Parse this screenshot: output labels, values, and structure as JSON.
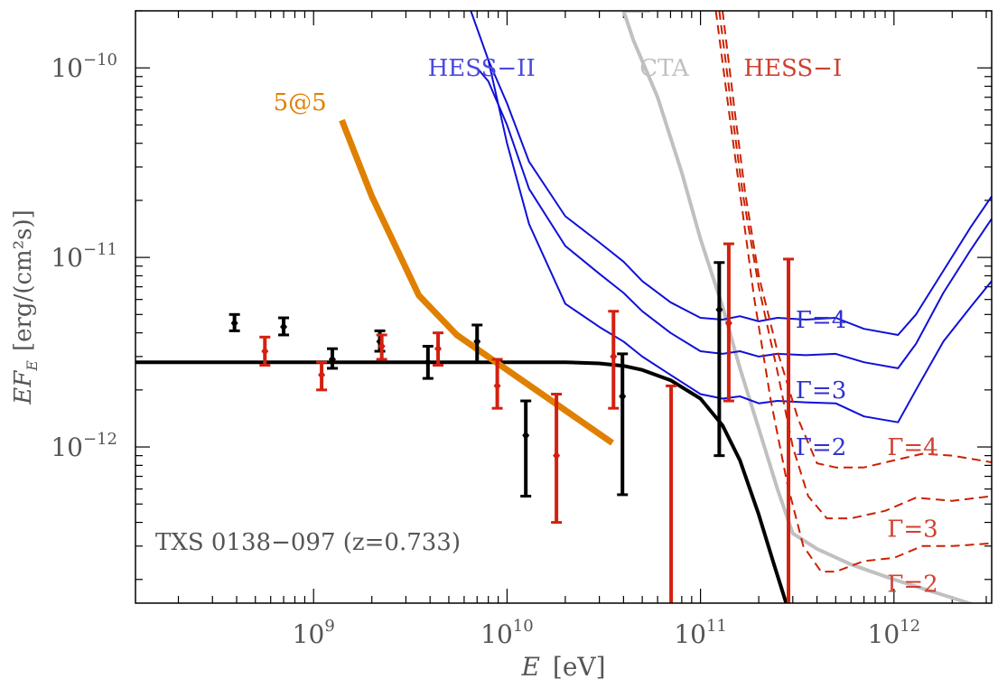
{
  "chart_data": {
    "type": "scatter",
    "title": "",
    "xlabel_var": "E",
    "xlabel_unit": "[eV]",
    "ylabel_var": "EF",
    "ylabel_sub": "E",
    "ylabel_unit": "[erg/(cm²s)]",
    "xscale": "log",
    "yscale": "log",
    "xlim": [
      120000000.0,
      3200000000000.0
    ],
    "ylim": [
      1.5e-13,
      2e-10
    ],
    "x_ticks": [
      {
        "base": "10",
        "exp": "9",
        "value": 1000000000.0
      },
      {
        "base": "10",
        "exp": "10",
        "value": 10000000000.0
      },
      {
        "base": "10",
        "exp": "11",
        "value": 100000000000.0
      },
      {
        "base": "10",
        "exp": "12",
        "value": 1000000000000.0
      }
    ],
    "y_ticks": [
      {
        "base": "10",
        "exp": "−12",
        "value": 1e-12
      },
      {
        "base": "10",
        "exp": "−11",
        "value": 1e-11
      },
      {
        "base": "10",
        "exp": "−10",
        "value": 1e-10
      }
    ],
    "annotation": "TXS 0138−097 (z=0.733)",
    "colors": {
      "black": "#000000",
      "red": "#d42010",
      "orange": "#e08000",
      "blue": "#1010d8",
      "gray": "#c0c0c0",
      "hessI": "#cc2000"
    },
    "series": [
      {
        "name": "black data",
        "kind": "points",
        "color": "#000000",
        "points": [
          [
            390000000.0,
            4.5e-12,
            4.1e-12,
            5e-12
          ],
          [
            700000000.0,
            4.3e-12,
            3.9e-12,
            4.8e-12
          ],
          [
            1250000000.0,
            2.9e-12,
            2.6e-12,
            3.3e-12
          ],
          [
            2200000000.0,
            3.6e-12,
            3.2e-12,
            4.1e-12
          ],
          [
            3900000000.0,
            2.8e-12,
            2.3e-12,
            3.4e-12
          ],
          [
            7000000000.0,
            3.6e-12,
            2.8e-12,
            4.4e-12
          ],
          [
            12500000000.0,
            1.15e-12,
            5.5e-13,
            1.75e-12
          ],
          [
            39500000000.0,
            1.85e-12,
            5.6e-13,
            3.1e-12
          ],
          [
            125000000000.0,
            5.3e-12,
            9e-13,
            9.4e-12
          ]
        ]
      },
      {
        "name": "red data",
        "kind": "points",
        "color": "#d42010",
        "points": [
          [
            560000000.0,
            3.2e-12,
            2.7e-12,
            3.8e-12
          ],
          [
            1100000000.0,
            2.4e-12,
            2e-12,
            2.8e-12
          ],
          [
            2250000000.0,
            3.4e-12,
            2.9e-12,
            3.9e-12
          ],
          [
            4400000000.0,
            3.3e-12,
            2.7e-12,
            4e-12
          ],
          [
            8900000000.0,
            2.1e-12,
            1.6e-12,
            2.9e-12
          ],
          [
            18000000000.0,
            9e-13,
            4e-13,
            1.9e-12
          ],
          [
            35500000000.0,
            3e-12,
            1.6e-12,
            5.2e-12
          ],
          [
            70500000000.0,
            null,
            1e-13,
            2.1e-12
          ],
          [
            140000000000.0,
            4.5e-12,
            1.75e-12,
            1.18e-11
          ],
          [
            285000000000.0,
            null,
            1e-13,
            9.8e-12
          ]
        ]
      },
      {
        "name": "model",
        "kind": "line",
        "color": "#000000",
        "width": 4,
        "points": [
          [
            120000000.0,
            2.8e-12
          ],
          [
            1000000000.0,
            2.8e-12
          ],
          [
            10000000000.0,
            2.8e-12
          ],
          [
            20000000000.0,
            2.8e-12
          ],
          [
            30000000000.0,
            2.76e-12
          ],
          [
            40000000000.0,
            2.68e-12
          ],
          [
            50000000000.0,
            2.55e-12
          ],
          [
            70000000000.0,
            2.25e-12
          ],
          [
            100000000000.0,
            1.8e-12
          ],
          [
            130000000000.0,
            1.3e-12
          ],
          [
            160000000000.0,
            8.5e-13
          ],
          [
            200000000000.0,
            4.4e-13
          ],
          [
            240000000000.0,
            2.4e-13
          ],
          [
            280000000000.0,
            1.45e-13
          ]
        ]
      },
      {
        "name": "5@5",
        "kind": "line",
        "color": "#e08000",
        "width": 7,
        "points": [
          [
            1400000000.0,
            5.3e-11
          ],
          [
            2000000000.0,
            2.1e-11
          ],
          [
            3500000000.0,
            6.3e-12
          ],
          [
            5500000000.0,
            3.9e-12
          ],
          [
            35000000000.0,
            1.05e-12
          ]
        ]
      },
      {
        "name": "CTA",
        "kind": "line",
        "color": "#c0c0c0",
        "width": 4,
        "points": [
          [
            55000000000.0,
            2e-10
          ],
          [
            40000000000.0,
            2e-10
          ],
          [
            45000000000.0,
            1.4e-10
          ],
          [
            60000000000.0,
            7e-11
          ],
          [
            80000000000.0,
            2.8e-11
          ],
          [
            100000000000.0,
            1.25e-11
          ],
          [
            130000000000.0,
            5.5e-12
          ],
          [
            160000000000.0,
            2.6e-12
          ],
          [
            200000000000.0,
            1.25e-12
          ],
          [
            250000000000.0,
            6e-13
          ],
          [
            300000000000.0,
            3.5e-13
          ],
          [
            400000000000.0,
            2.9e-13
          ],
          [
            600000000000.0,
            2.4e-13
          ],
          [
            1000000000000.0,
            2e-13
          ],
          [
            2000000000000.0,
            1.6e-13
          ],
          [
            3000000000000.0,
            1.4e-13
          ]
        ]
      },
      {
        "name": "HESS-II Γ=4",
        "kind": "line",
        "color": "#1010d8",
        "width": 2,
        "points": [
          [
            6500000000.0,
            2e-10
          ],
          [
            8000000000.0,
            1.1e-10
          ],
          [
            10000000000.0,
            6.5e-11
          ],
          [
            13000000000.0,
            3.2e-11
          ],
          [
            20000000000.0,
            1.65e-11
          ],
          [
            30000000000.0,
            1.2e-11
          ],
          [
            40000000000.0,
            9.5e-12
          ],
          [
            50000000000.0,
            7.5e-12
          ],
          [
            70000000000.0,
            5.8e-12
          ],
          [
            100000000000.0,
            4.8e-12
          ],
          [
            130000000000.0,
            4.7e-12
          ],
          [
            160000000000.0,
            4.9e-12
          ],
          [
            200000000000.0,
            4.6e-12
          ],
          [
            250000000000.0,
            4.8e-12
          ],
          [
            350000000000.0,
            4.7e-12
          ],
          [
            500000000000.0,
            4.8e-12
          ],
          [
            700000000000.0,
            4.2e-12
          ],
          [
            1050000000000.0,
            3.9e-12
          ],
          [
            1300000000000.0,
            5e-12
          ],
          [
            1800000000000.0,
            8.5e-12
          ],
          [
            2500000000000.0,
            1.45e-11
          ],
          [
            3200000000000.0,
            2.1e-11
          ]
        ]
      },
      {
        "name": "HESS-II Γ=3",
        "kind": "line",
        "color": "#1010d8",
        "width": 2,
        "points": [
          [
            7000000000.0,
            1e-10
          ],
          [
            8000000000.0,
            8.5e-11
          ],
          [
            10000000000.0,
            5e-11
          ],
          [
            13000000000.0,
            2.3e-11
          ],
          [
            20000000000.0,
            1.15e-11
          ],
          [
            30000000000.0,
            8.2e-12
          ],
          [
            40000000000.0,
            6.5e-12
          ],
          [
            50000000000.0,
            5.2e-12
          ],
          [
            70000000000.0,
            4e-12
          ],
          [
            100000000000.0,
            3.2e-12
          ],
          [
            130000000000.0,
            3.1e-12
          ],
          [
            160000000000.0,
            3.2e-12
          ],
          [
            200000000000.0,
            3e-12
          ],
          [
            250000000000.0,
            3.1e-12
          ],
          [
            350000000000.0,
            3.05e-12
          ],
          [
            500000000000.0,
            3.1e-12
          ],
          [
            700000000000.0,
            2.8e-12
          ],
          [
            1050000000000.0,
            2.6e-12
          ],
          [
            1300000000000.0,
            3.5e-12
          ],
          [
            1800000000000.0,
            6.5e-12
          ],
          [
            2500000000000.0,
            1.1e-11
          ],
          [
            3200000000000.0,
            1.6e-11
          ]
        ]
      },
      {
        "name": "HESS-II Γ=2",
        "kind": "line",
        "color": "#1010d8",
        "width": 2,
        "points": [
          [
            8000000000.0,
            1.1e-10
          ],
          [
            10000000000.0,
            4e-11
          ],
          [
            13000000000.0,
            1.5e-11
          ],
          [
            20000000000.0,
            5.7e-12
          ],
          [
            30000000000.0,
            4.3e-12
          ],
          [
            40000000000.0,
            3.6e-12
          ],
          [
            50000000000.0,
            3e-12
          ],
          [
            70000000000.0,
            2.4e-12
          ],
          [
            100000000000.0,
            1.9e-12
          ],
          [
            130000000000.0,
            1.8e-12
          ],
          [
            160000000000.0,
            1.85e-12
          ],
          [
            200000000000.0,
            1.7e-12
          ],
          [
            250000000000.0,
            1.75e-12
          ],
          [
            350000000000.0,
            1.72e-12
          ],
          [
            500000000000.0,
            1.7e-12
          ],
          [
            700000000000.0,
            1.45e-12
          ],
          [
            1050000000000.0,
            1.35e-12
          ],
          [
            1300000000000.0,
            2e-12
          ],
          [
            1800000000000.0,
            3.6e-12
          ],
          [
            2500000000000.0,
            5.5e-12
          ],
          [
            3200000000000.0,
            7.5e-12
          ]
        ]
      },
      {
        "name": "HESS-I Γ=4",
        "kind": "dashed",
        "color": "#cc2000",
        "width": 2,
        "points": [
          [
            130000000000.0,
            2e-10
          ],
          [
            150000000000.0,
            6e-11
          ],
          [
            170000000000.0,
            2.2e-11
          ],
          [
            200000000000.0,
            8e-12
          ],
          [
            250000000000.0,
            3.2e-12
          ],
          [
            320000000000.0,
            1.4e-12
          ],
          [
            400000000000.0,
            8.2e-13
          ],
          [
            500000000000.0,
            7.8e-13
          ],
          [
            700000000000.0,
            7.8e-13
          ],
          [
            1000000000000.0,
            8.5e-13
          ],
          [
            1400000000000.0,
            9.2e-13
          ],
          [
            2000000000000.0,
            9e-13
          ],
          [
            3200000000000.0,
            8.3e-13
          ]
        ]
      },
      {
        "name": "HESS-I Γ=3",
        "kind": "dashed",
        "color": "#cc2000",
        "width": 2,
        "points": [
          [
            125000000000.0,
            2e-10
          ],
          [
            145000000000.0,
            6e-11
          ],
          [
            165000000000.0,
            2.2e-11
          ],
          [
            200000000000.0,
            7e-12
          ],
          [
            250000000000.0,
            2.5e-12
          ],
          [
            300000000000.0,
            1e-12
          ],
          [
            360000000000.0,
            5.5e-13
          ],
          [
            450000000000.0,
            4.2e-13
          ],
          [
            600000000000.0,
            4.2e-13
          ],
          [
            900000000000.0,
            4.6e-13
          ],
          [
            1300000000000.0,
            5.4e-13
          ],
          [
            2000000000000.0,
            5.2e-13
          ],
          [
            3200000000000.0,
            5.5e-13
          ]
        ]
      },
      {
        "name": "HESS-I Γ=2",
        "kind": "dashed",
        "color": "#cc2000",
        "width": 2,
        "points": [
          [
            120000000000.0,
            2e-10
          ],
          [
            140000000000.0,
            6e-11
          ],
          [
            160000000000.0,
            2.2e-11
          ],
          [
            190000000000.0,
            6e-12
          ],
          [
            230000000000.0,
            1.8e-12
          ],
          [
            280000000000.0,
            6.5e-13
          ],
          [
            340000000000.0,
            3e-13
          ],
          [
            420000000000.0,
            2.2e-13
          ],
          [
            500000000000.0,
            2.2e-13
          ],
          [
            700000000000.0,
            2.5e-13
          ],
          [
            1000000000000.0,
            2.6e-13
          ],
          [
            1400000000000.0,
            3e-13
          ],
          [
            2000000000000.0,
            3e-13
          ],
          [
            3200000000000.0,
            3.1e-13
          ]
        ]
      }
    ],
    "labels": [
      {
        "text": "HESS−II",
        "color": "#4a4ae0",
        "x": 14000000000.0,
        "y": 1e-10,
        "anchor": "end"
      },
      {
        "text": "CTA",
        "color": "#c0c0c0",
        "x": 65000000000.0,
        "y": 1e-10,
        "anchor": "middle"
      },
      {
        "text": "HESS−I",
        "color": "#d04030",
        "x": 300000000000.0,
        "y": 1e-10,
        "anchor": "middle"
      },
      {
        "text": "5@5",
        "color": "#e08000",
        "x": 850000000.0,
        "y": 6.6e-11,
        "anchor": "middle"
      },
      {
        "text": "Γ=4",
        "color": "#3030d0",
        "x": 420000000000.0,
        "y": 4.7e-12,
        "anchor": "middle"
      },
      {
        "text": "Γ=3",
        "color": "#3030d0",
        "x": 420000000000.0,
        "y": 2e-12,
        "anchor": "middle"
      },
      {
        "text": "Γ=2",
        "color": "#3030d0",
        "x": 420000000000.0,
        "y": 1e-12,
        "anchor": "middle"
      },
      {
        "text": "Γ=4",
        "color": "#d04030",
        "x": 1250000000000.0,
        "y": 1e-12,
        "anchor": "middle"
      },
      {
        "text": "Γ=3",
        "color": "#d04030",
        "x": 1250000000000.0,
        "y": 3.7e-13,
        "anchor": "middle"
      },
      {
        "text": "Γ=2",
        "color": "#d04030",
        "x": 1250000000000.0,
        "y": 1.9e-13,
        "anchor": "middle"
      }
    ]
  }
}
